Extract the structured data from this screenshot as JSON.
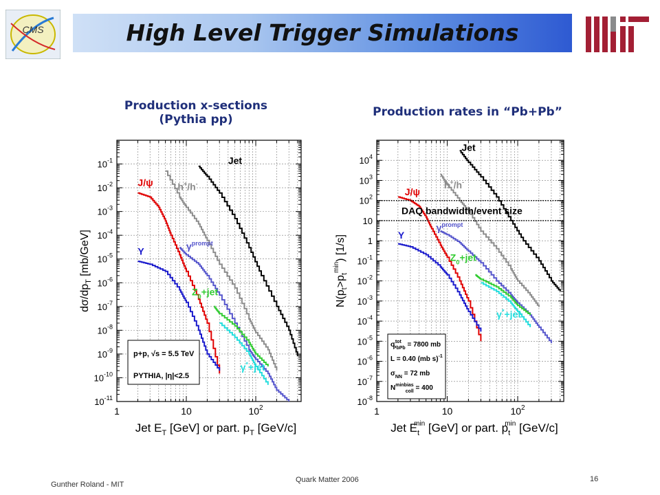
{
  "slide": {
    "title": "High Level Trigger Simulations",
    "cms_logo_text": "CMS",
    "footer_left": "Gunther Roland - MIT",
    "footer_center": "Quark Matter 2006",
    "page_number": "16",
    "colors": {
      "accent_blue": "#2e5ad2",
      "mit_red": "#a31f34",
      "panel_title": "#1f2f7a"
    }
  },
  "chart_data": [
    {
      "type": "line",
      "panel_title_1": "Production x-sections",
      "panel_title_2": "(Pythia pp)",
      "ylabel_1": "dσ/dp",
      "ylabel_sub": "T",
      "ylabel_2": " [mb/GeV]",
      "xlabel_1": "Jet E",
      "xlabel_sub": "T",
      "xlabel_2": " [GeV] or part. p",
      "xlabel_sub2": "T",
      "xlabel_3": " [GeV/c]",
      "x_scale": "log",
      "y_scale": "log",
      "xlim": [
        1,
        450
      ],
      "ylim": [
        1e-11,
        1
      ],
      "x_ticks": [
        {
          "v": 1,
          "b": "1",
          "e": ""
        },
        {
          "v": 10,
          "b": "10",
          "e": ""
        },
        {
          "v": 100,
          "b": "10",
          "e": "2"
        }
      ],
      "y_ticks": [
        {
          "v": 0.1,
          "b": "10",
          "e": "-1"
        },
        {
          "v": 0.01,
          "b": "10",
          "e": "-2"
        },
        {
          "v": 0.001,
          "b": "10",
          "e": "-3"
        },
        {
          "v": 0.0001,
          "b": "10",
          "e": "-4"
        },
        {
          "v": 1e-05,
          "b": "10",
          "e": "-5"
        },
        {
          "v": 1e-06,
          "b": "10",
          "e": "-6"
        },
        {
          "v": 1e-07,
          "b": "10",
          "e": "-7"
        },
        {
          "v": 1e-08,
          "b": "10",
          "e": "-8"
        },
        {
          "v": 1e-09,
          "b": "10",
          "e": "-9"
        },
        {
          "v": 1e-10,
          "b": "10",
          "e": "-10"
        },
        {
          "v": 1e-11,
          "b": "10",
          "e": "-11"
        }
      ],
      "grid": true,
      "legend_box_line_1": "p+p, √s = 5.5 TeV",
      "legend_box_line_2": "PYTHIA, |η|<2.5",
      "series": [
        {
          "name": "Jet",
          "color": "#000000",
          "x": [
            15,
            20,
            30,
            50,
            80,
            120,
            200,
            300,
            400
          ],
          "y": [
            0.08,
            0.03,
            0.006,
            0.0005,
            3e-05,
            2e-06,
            1e-07,
            1e-08,
            8e-10
          ]
        },
        {
          "name": "h+/h-",
          "color": "#8c8c8c",
          "x": [
            5,
            8,
            10,
            15,
            20,
            30,
            50,
            80,
            100,
            150,
            200
          ],
          "y": [
            0.05,
            0.004,
            0.0015,
            0.0003,
            6e-05,
            6e-06,
            6e-07,
            3e-08,
            8e-09,
            1.5e-09,
            2e-10
          ]
        },
        {
          "name": "J/ψ",
          "color": "#e00000",
          "x": [
            2,
            3,
            4,
            5,
            6,
            8,
            10,
            15,
            20,
            30
          ],
          "y": [
            0.006,
            0.004,
            0.0015,
            0.0004,
            0.0001,
            1.5e-05,
            3e-06,
            2e-07,
            2e-08,
            1.5e-10
          ]
        },
        {
          "name": "Υ",
          "color": "#1a1acc",
          "x": [
            2,
            3,
            5,
            8,
            10,
            15,
            20,
            30
          ],
          "y": [
            8e-06,
            6e-06,
            3e-06,
            5e-07,
            1.5e-07,
            1e-08,
            1e-09,
            2e-10
          ]
        },
        {
          "name": "γ prompt",
          "color": "#5555cc",
          "x": [
            8,
            10,
            15,
            20,
            30,
            50,
            80,
            100,
            150,
            200,
            300
          ],
          "y": [
            3e-05,
            1.5e-05,
            6e-06,
            2e-06,
            3e-07,
            2e-08,
            1.5e-09,
            6e-10,
            1.5e-10,
            3e-11,
            1e-11
          ]
        },
        {
          "name": "Z0+jet",
          "color": "#33cc33",
          "x": [
            25,
            30,
            50,
            80,
            100,
            150
          ],
          "y": [
            1e-07,
            5e-08,
            1.5e-08,
            3e-09,
            1e-09,
            3e-10
          ]
        },
        {
          "name": "γ*+jet",
          "color": "#22dddd",
          "x": [
            30,
            50,
            80,
            100,
            150
          ],
          "y": [
            2e-08,
            5e-09,
            1e-09,
            3e-10,
            5e-11
          ]
        }
      ],
      "labels": [
        {
          "t": "Jet",
          "sup": "",
          "sub": "",
          "color": "#000000",
          "x": 40,
          "y": 0.1
        },
        {
          "t": "h",
          "sup": "+",
          "t2": "/h",
          "sup2": "-",
          "color": "#8c8c8c",
          "x": 7.5,
          "y": 0.008
        },
        {
          "t": "J/ψ",
          "sup": "",
          "sub": "",
          "color": "#e00000",
          "x": 2,
          "y": 0.012
        },
        {
          "t": "Υ",
          "sup": "",
          "sub": "",
          "color": "#1a1acc",
          "x": 2,
          "y": 1.5e-05
        },
        {
          "t": "γ",
          "sup": "prompt",
          "sub": "",
          "color": "#5555cc",
          "x": 10,
          "y": 2.5e-05
        },
        {
          "t": "Z",
          "sup": "",
          "sub": "0",
          "t3": "+jet",
          "color": "#33cc33",
          "x": 12,
          "y": 3e-07
        },
        {
          "t": "γ",
          "sup": "*",
          "sub": "",
          "t3": "+jet",
          "color": "#22dddd",
          "x": 60,
          "y": 2e-10
        }
      ]
    },
    {
      "type": "line",
      "panel_title": "Production rates in “Pb+Pb”",
      "ylabel_1": "N(p",
      "ylabel_sub": "t",
      "ylabel_2": ">p",
      "ylabel_sub2": "t",
      "ylabel_sup2": "min",
      "ylabel_3": ") [1/s]",
      "xlabel_1": "Jet E",
      "xlabel_sub": "t",
      "xlabel_sup": "min",
      "xlabel_2": " [GeV] or part. p",
      "xlabel_sub2": "t",
      "xlabel_sup2": "min",
      "xlabel_3": " [GeV/c]",
      "x_scale": "log",
      "y_scale": "log",
      "xlim": [
        1,
        450
      ],
      "ylim": [
        1e-08,
        100000.0
      ],
      "x_ticks": [
        {
          "v": 1,
          "b": "1",
          "e": ""
        },
        {
          "v": 10,
          "b": "10",
          "e": ""
        },
        {
          "v": 100,
          "b": "10",
          "e": "2"
        }
      ],
      "y_ticks": [
        {
          "v": 10000,
          "b": "10",
          "e": "4"
        },
        {
          "v": 1000,
          "b": "10",
          "e": "3"
        },
        {
          "v": 100,
          "b": "10",
          "e": "2"
        },
        {
          "v": 10,
          "b": "10",
          "e": ""
        },
        {
          "v": 1,
          "b": "1",
          "e": ""
        },
        {
          "v": 0.1,
          "b": "10",
          "e": "-1"
        },
        {
          "v": 0.01,
          "b": "10",
          "e": "-2"
        },
        {
          "v": 0.001,
          "b": "10",
          "e": "-3"
        },
        {
          "v": 0.0001,
          "b": "10",
          "e": "-4"
        },
        {
          "v": 1e-05,
          "b": "10",
          "e": "-5"
        },
        {
          "v": 1e-06,
          "b": "10",
          "e": "-6"
        },
        {
          "v": 1e-07,
          "b": "10",
          "e": "-7"
        },
        {
          "v": 1e-08,
          "b": "10",
          "e": "-8"
        }
      ],
      "grid": true,
      "daq_label": "DAQ bandwidth/event size",
      "daq_levels": [
        100,
        10
      ],
      "legend_box": [
        {
          "t": "σ",
          "sup": "tot",
          "sub": "PbPb",
          "rest": " = 7800 mb"
        },
        {
          "t": "L = 0.40 (mb s)",
          "sup": "-1",
          "sub": "",
          "rest": ""
        },
        {
          "t": "σ",
          "sup": "",
          "sub": "NN",
          "rest": " = 72 mb"
        },
        {
          "t": "N",
          "sup": "minbias",
          "sub": "coll",
          "rest": " = 400"
        }
      ],
      "series": [
        {
          "name": "Jet",
          "color": "#000000",
          "x": [
            15,
            20,
            30,
            50,
            80,
            120,
            200,
            300,
            400
          ],
          "y": [
            30000,
            8000,
            1500,
            150,
            10,
            1,
            0.1,
            0.01,
            0.003
          ]
        },
        {
          "name": "h+/h-",
          "color": "#8c8c8c",
          "x": [
            8,
            10,
            15,
            20,
            30,
            50,
            80,
            100,
            150,
            200
          ],
          "y": [
            2000,
            600,
            100,
            30,
            3,
            0.4,
            0.04,
            0.01,
            0.002,
            0.0005
          ]
        },
        {
          "name": "J/ψ",
          "color": "#e00000",
          "x": [
            2,
            3,
            4,
            5,
            6,
            8,
            10,
            15,
            20,
            30
          ],
          "y": [
            150,
            100,
            50,
            15,
            4,
            0.6,
            0.15,
            0.01,
            0.001,
            1e-05
          ]
        },
        {
          "name": "Υ",
          "color": "#1a1acc",
          "x": [
            2,
            3,
            5,
            8,
            10,
            15,
            20,
            30
          ],
          "y": [
            0.7,
            0.5,
            0.2,
            0.05,
            0.02,
            0.002,
            0.0003,
            3e-05
          ]
        },
        {
          "name": "γ prompt",
          "color": "#5555cc",
          "x": [
            8,
            10,
            15,
            20,
            30,
            50,
            80,
            100,
            150,
            200,
            300
          ],
          "y": [
            3,
            2,
            0.8,
            0.3,
            0.08,
            0.01,
            0.002,
            0.0008,
            0.0002,
            5e-05,
            8e-06
          ]
        },
        {
          "name": "Z0+jet",
          "color": "#33cc33",
          "x": [
            25,
            30,
            50,
            80,
            100,
            150
          ],
          "y": [
            0.02,
            0.012,
            0.005,
            0.0015,
            0.0006,
            0.0002
          ]
        },
        {
          "name": "γ*+jet",
          "color": "#22dddd",
          "x": [
            30,
            50,
            80,
            100,
            150
          ],
          "y": [
            0.008,
            0.003,
            0.0008,
            0.0003,
            5e-05
          ]
        }
      ],
      "labels": [
        {
          "t": "Jet",
          "sup": "",
          "sub": "",
          "color": "#000000",
          "x": 16,
          "y": 30000
        },
        {
          "t": "h",
          "sup": "+",
          "t2": "/h",
          "sup2": "-",
          "color": "#8c8c8c",
          "x": 9,
          "y": 400
        },
        {
          "t": "J/ψ",
          "sup": "",
          "sub": "",
          "color": "#e00000",
          "x": 2.5,
          "y": 180
        },
        {
          "t": "Υ",
          "sup": "",
          "sub": "",
          "color": "#1a1acc",
          "x": 2,
          "y": 1.3
        },
        {
          "t": "γ",
          "sup": "prompt",
          "sub": "",
          "color": "#5555cc",
          "x": 7,
          "y": 3
        },
        {
          "t": "Z",
          "sup": "",
          "sub": "0",
          "t3": "+jet",
          "color": "#33cc33",
          "x": 11,
          "y": 0.1
        },
        {
          "t": "γ",
          "sup": "*",
          "sub": "",
          "t3": "+jet",
          "color": "#22dddd",
          "x": 50,
          "y": 0.00015
        }
      ]
    }
  ]
}
